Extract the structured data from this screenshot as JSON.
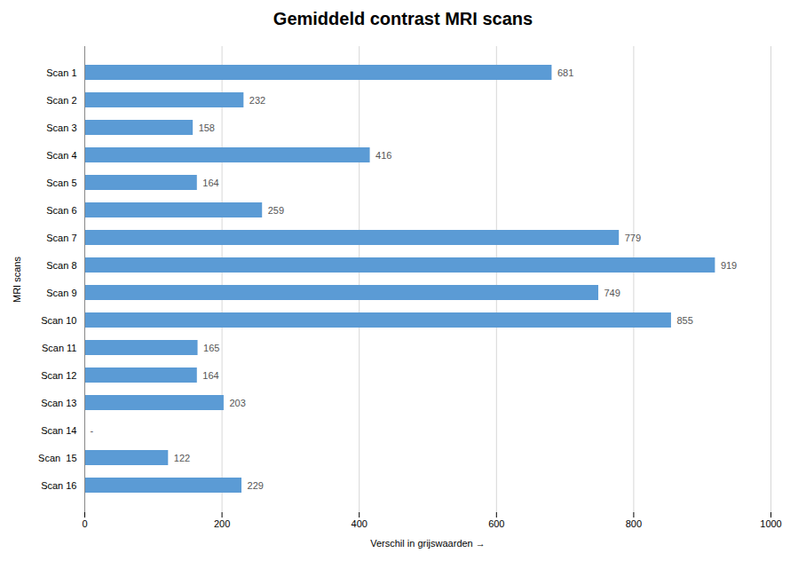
{
  "chart_data": {
    "type": "bar",
    "orientation": "horizontal",
    "title": "Gemiddeld contrast MRI scans",
    "xlabel": "Verschil in grijswaarden",
    "ylabel": "MRI scans",
    "categories": [
      "Scan 1",
      "Scan 2",
      "Scan 3",
      "Scan 4",
      "Scan 5",
      "Scan 6",
      "Scan 7",
      "Scan 8",
      "Scan 9",
      "Scan 10",
      "Scan 11",
      "Scan 12",
      "Scan 13",
      "Scan 14",
      "Scan  15",
      "Scan 16"
    ],
    "values": [
      681,
      232,
      158,
      416,
      164,
      259,
      779,
      919,
      749,
      855,
      165,
      164,
      203,
      0,
      122,
      229
    ],
    "value_labels": [
      "681",
      "232",
      "158",
      "416",
      "164",
      "259",
      "779",
      "919",
      "749",
      "855",
      "165",
      "164",
      "203",
      "-",
      "122",
      "229"
    ],
    "data_labels": true,
    "color": "#5B9BD5",
    "xlim": [
      0,
      1000
    ],
    "xticks": [
      0,
      200,
      400,
      600,
      800,
      1000
    ],
    "grid": true
  }
}
